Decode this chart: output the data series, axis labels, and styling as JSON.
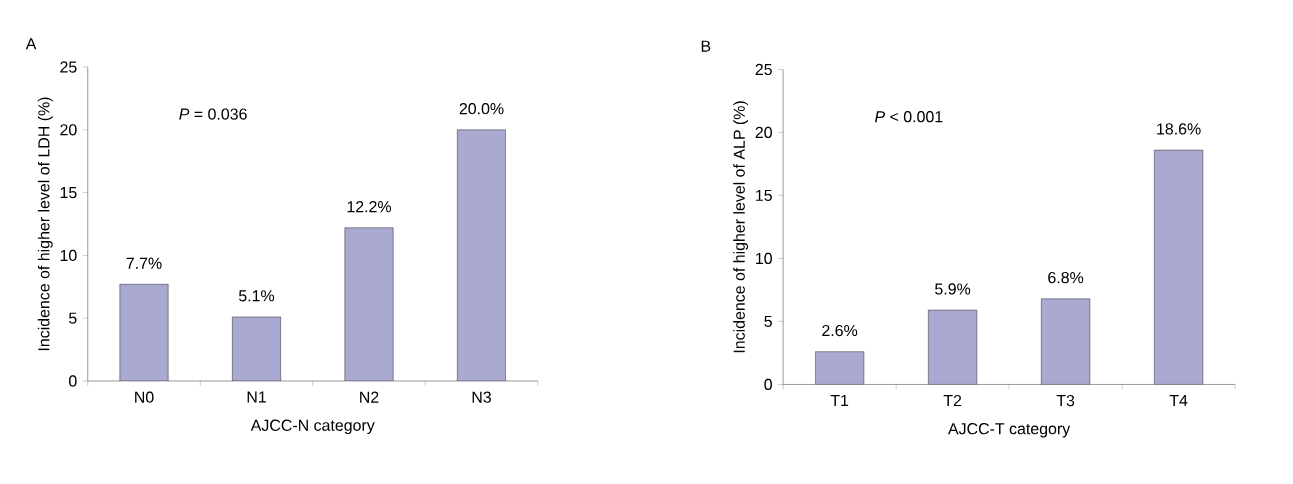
{
  "chart_data": [
    {
      "type": "bar",
      "title": "A",
      "xlabel": "AJCC-N category",
      "ylabel": "Incidence of higher level of LDH (%)",
      "categories": [
        "N0",
        "N1",
        "N2",
        "N3"
      ],
      "values": [
        7.7,
        5.1,
        12.2,
        20.0
      ],
      "value_labels": [
        "7.7%",
        "5.1%",
        "12.2%",
        "20.0%"
      ],
      "color": "#a9a9d1",
      "ylim": [
        0,
        25
      ],
      "yticks": [
        0,
        5,
        10,
        15,
        20,
        25
      ],
      "annotations": [
        "*P* = 0.036"
      ]
    },
    {
      "type": "bar",
      "title": "B",
      "xlabel": "AJCC-T category",
      "ylabel": "Incidence of higher level of ALP (%)",
      "categories": [
        "T1",
        "T2",
        "T3",
        "T4"
      ],
      "values": [
        2.6,
        5.9,
        6.8,
        18.6
      ],
      "value_labels": [
        "2.6%",
        "5.9%",
        "6.8%",
        "18.6%"
      ],
      "color": "#a9a9d1",
      "ylim": [
        0,
        25
      ],
      "yticks": [
        0,
        5,
        10,
        15,
        20,
        25
      ],
      "annotations": [
        "*P* < 0.001"
      ]
    }
  ]
}
